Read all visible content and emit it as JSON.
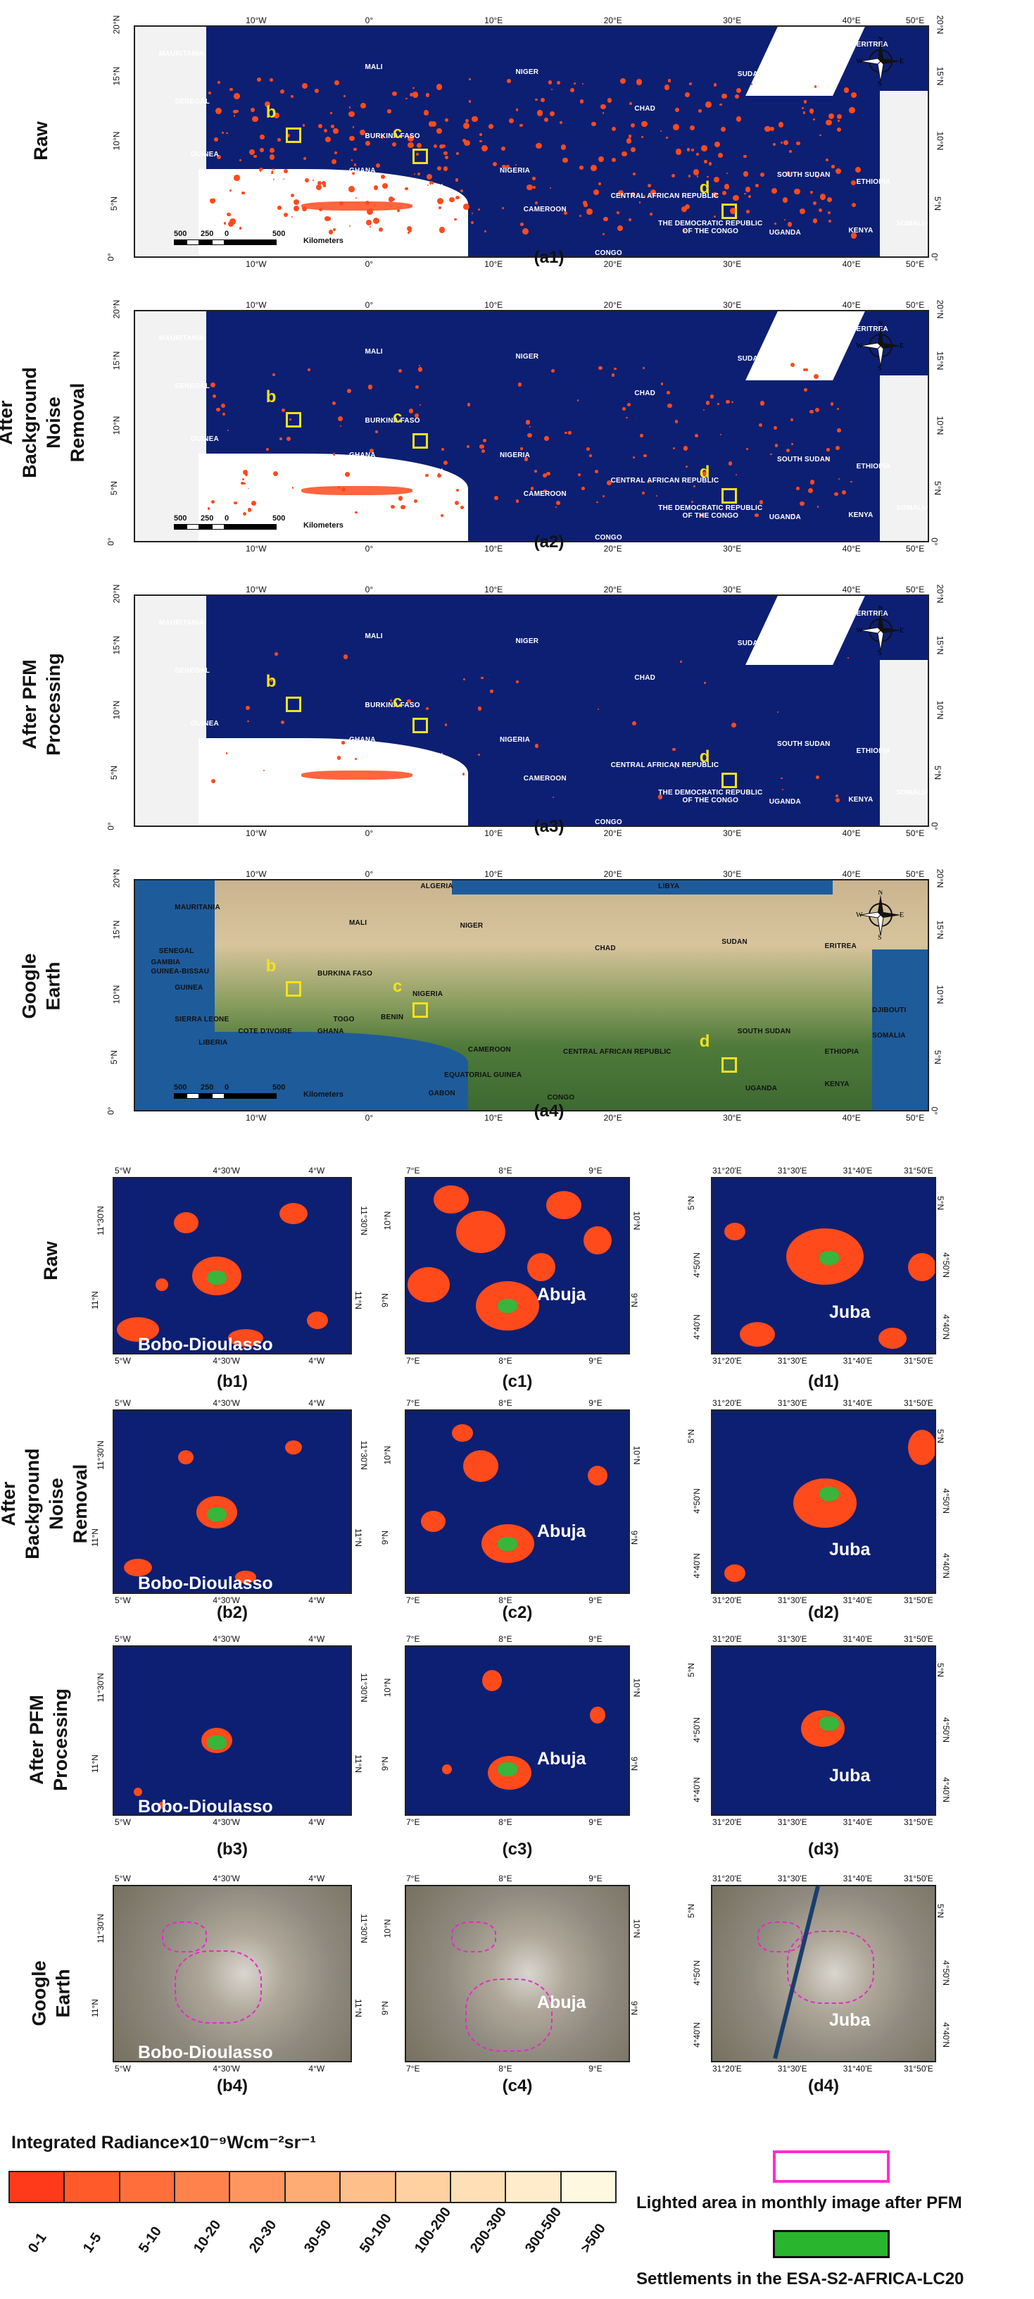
{
  "overview": {
    "row_labels": [
      "Raw",
      "After Background\nNoise Removal",
      "After PFM\nProcessing",
      "Google Earth"
    ],
    "captions": [
      "(a1)",
      "(a2)",
      "(a3)",
      "(a4)"
    ],
    "lon_ticks": [
      "10°W",
      "0°",
      "10°E",
      "20°E",
      "30°E",
      "40°E",
      "50°E"
    ],
    "lat_ticks": [
      "20°N",
      "15°N",
      "10°N",
      "5°N",
      "0°"
    ],
    "countries_night": [
      "MAURITANIA",
      "MALI",
      "NIGER",
      "CHAD",
      "SUDAN",
      "ERITREA",
      "SENEGAL",
      "BURKINA FASO",
      "GUINEA",
      "NIGERIA",
      "COTE\nD' IVOIRE",
      "GHANA",
      "SOUTH SUDAN",
      "ETHIOPIA",
      "CENTRAL AFRICAN REPUBLIC",
      "CAMEROON",
      "THE DEMOCRATIC REPUBLIC\nOF THE CONGO",
      "CONGO",
      "GABON",
      "UGANDA",
      "KENYA",
      "SOMALIA",
      "SIERRA\nLEONE",
      "LIBERIA",
      "BENIN"
    ],
    "countries_ge": [
      "MAURITANIA",
      "MALI",
      "NIGER",
      "CHAD",
      "SUDAN",
      "ERITREA",
      "ALGERIA",
      "LIBYA",
      "SENEGAL",
      "GAMBIA",
      "GUINEA-BISSAU",
      "GUINEA",
      "SIERRA LEONE",
      "LIBERIA",
      "COTE D'IVOIRE",
      "GHANA",
      "TOGO",
      "BENIN",
      "BURKINA FASO",
      "NIGERIA",
      "CAMEROON",
      "EQUATORIAL GUINEA",
      "GABON",
      "CONGO",
      "CENTRAL AFRICAN REPUBLIC",
      "SOUTH SUDAN",
      "ETHIOPIA",
      "DJIBOUTI",
      "SOMALIA",
      "UGANDA",
      "KENYA"
    ],
    "box_letters": [
      "b",
      "c",
      "d"
    ],
    "scalebar_a1": {
      "nums": [
        "500",
        "250",
        "0",
        "500"
      ],
      "unit": "Kilometers"
    },
    "scalebar": {
      "nums": [
        "500",
        "250",
        "0",
        "500"
      ],
      "unit": "Kilometers"
    },
    "compass": {
      "n": "N",
      "s": "S",
      "e": "E",
      "w": "W"
    }
  },
  "zoom": {
    "row_labels": [
      "Raw",
      "After Background\nNoise Removal",
      "After PFM\nProcessing",
      "Google Earth"
    ],
    "b": {
      "city": "Bobo-Dioulasso",
      "captions": [
        "(b1)",
        "(b2)",
        "(b3)",
        "(b4)"
      ],
      "top_ticks": [
        "5°W",
        "4°30'W",
        "4°W"
      ],
      "bottom_ticks": [
        "5°W",
        "4°30'W",
        "4°W"
      ],
      "left_ticks": [
        "11°30'N",
        "11°N"
      ],
      "right_ticks": [
        "11°30'N",
        "11°N"
      ]
    },
    "c": {
      "city": "Abuja",
      "captions": [
        "(c1)",
        "(c2)",
        "(c3)",
        "(c4)"
      ],
      "top_ticks": [
        "7°E",
        "8°E",
        "9°E"
      ],
      "bottom_ticks": [
        "7°E",
        "8°E",
        "9°E"
      ],
      "left_ticks": [
        "10°N",
        "9°N"
      ],
      "right_ticks": [
        "10°N",
        "9°N"
      ]
    },
    "d": {
      "city": "Juba",
      "captions": [
        "(d1)",
        "(d2)",
        "(d3)",
        "(d4)"
      ],
      "top_ticks": [
        "31°20'E",
        "31°30'E",
        "31°40'E",
        "31°50'E"
      ],
      "bottom_ticks": [
        "31°20'E",
        "31°30'E",
        "31°40'E",
        "31°50'E"
      ],
      "left_ticks": [
        "5°N",
        "4°50'N",
        "4°40'N"
      ],
      "right_ticks": [
        "5°N",
        "4°50'N",
        "4°40'N"
      ]
    }
  },
  "legend": {
    "title": "Integrated Radiance×10⁻⁹Wcm⁻²sr⁻¹",
    "classes": [
      "0-1",
      "1-5",
      "5-10",
      "10-20",
      "20-30",
      "30-50",
      "50-100",
      "100-200",
      "200-300",
      "300-500",
      ">500"
    ],
    "class_colors": [
      "#ff3a1a",
      "#ff5a2a",
      "#ff6e3b",
      "#ff824d",
      "#ff9660",
      "#ffab74",
      "#ffbf8a",
      "#ffd0a0",
      "#ffdfb6",
      "#ffeccb",
      "#fff8e0"
    ],
    "lighted_area": "Lighted area in monthly image after PFM",
    "lighted_color": "#ff2bd6",
    "settlements": "Settlements in the ESA-S2-AFRICA-LC20",
    "settlements_color": "#2ab52e",
    "ocean_color": "#0d1f73"
  }
}
